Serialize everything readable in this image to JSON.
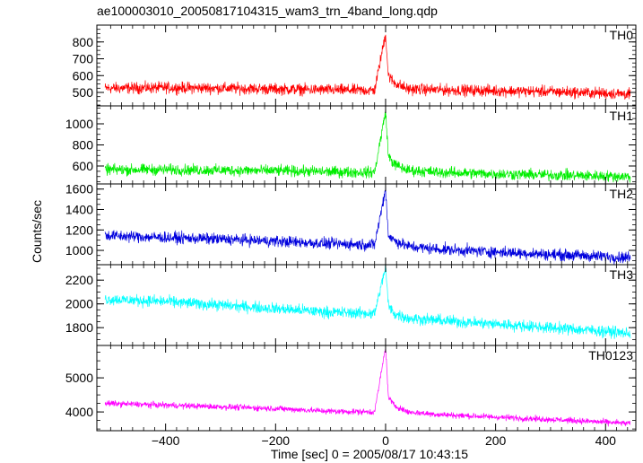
{
  "title": "ae100003010_20050817104315_wam3_trn_4band_long.qdp",
  "chart_data": {
    "type": "line",
    "title": "ae100003010_20050817104315_wam3_trn_4band_long.qdp",
    "xlabel": "Time [sec] 0 = 2005/08/17 10:43:15",
    "ylabel": "Counts/sec",
    "xlim": [
      -525,
      455
    ],
    "xticks": [
      -400,
      -200,
      0,
      200,
      400
    ],
    "xticklabels": [
      "−400",
      "−200",
      "0",
      "200",
      "400"
    ],
    "grid": false,
    "panels": [
      {
        "name": "TH0",
        "color": "#ff0000",
        "ylim": [
          420,
          900
        ],
        "yticks": [
          500,
          600,
          700,
          800
        ],
        "series": {
          "x": [
            -510,
            -400,
            -300,
            -200,
            -100,
            -20,
            0,
            5,
            15,
            40,
            100,
            200,
            300,
            400,
            445
          ],
          "y": [
            525,
            528,
            525,
            520,
            515,
            512,
            850,
            600,
            560,
            520,
            515,
            510,
            505,
            495,
            490
          ]
        }
      },
      {
        "name": "TH1",
        "color": "#00ee00",
        "ylim": [
          430,
          1170
        ],
        "yticks": [
          600,
          800,
          1000
        ],
        "series": {
          "x": [
            -510,
            -400,
            -300,
            -200,
            -100,
            -20,
            0,
            5,
            15,
            40,
            100,
            200,
            300,
            400,
            445
          ],
          "y": [
            565,
            565,
            560,
            555,
            545,
            540,
            1120,
            700,
            620,
            560,
            540,
            525,
            515,
            505,
            500
          ]
        }
      },
      {
        "name": "TH2",
        "color": "#0000dd",
        "ylim": [
          860,
          1650
        ],
        "yticks": [
          1000,
          1200,
          1400,
          1600
        ],
        "series": {
          "x": [
            -510,
            -400,
            -300,
            -200,
            -100,
            -20,
            0,
            5,
            15,
            40,
            100,
            200,
            300,
            400,
            445
          ],
          "y": [
            1145,
            1125,
            1110,
            1090,
            1065,
            1055,
            1600,
            1150,
            1100,
            1040,
            1010,
            985,
            960,
            940,
            930
          ]
        }
      },
      {
        "name": "TH3",
        "color": "#00ffff",
        "ylim": [
          1650,
          2330
        ],
        "yticks": [
          1800,
          2000,
          2200
        ],
        "series": {
          "x": [
            -510,
            -400,
            -300,
            -200,
            -100,
            -20,
            0,
            5,
            15,
            40,
            100,
            200,
            300,
            400,
            445
          ],
          "y": [
            2040,
            2020,
            1990,
            1960,
            1930,
            1920,
            2310,
            1990,
            1920,
            1880,
            1860,
            1830,
            1800,
            1770,
            1750
          ]
        }
      },
      {
        "name": "TH0123",
        "color": "#ff00ff",
        "ylim": [
          3450,
          5950
        ],
        "yticks": [
          4000,
          5000
        ],
        "series": {
          "x": [
            -510,
            -400,
            -300,
            -200,
            -100,
            -20,
            0,
            5,
            15,
            40,
            100,
            200,
            300,
            400,
            445
          ],
          "y": [
            4250,
            4200,
            4150,
            4100,
            4020,
            4000,
            5900,
            4450,
            4200,
            4000,
            3920,
            3850,
            3780,
            3700,
            3660
          ]
        }
      }
    ]
  }
}
